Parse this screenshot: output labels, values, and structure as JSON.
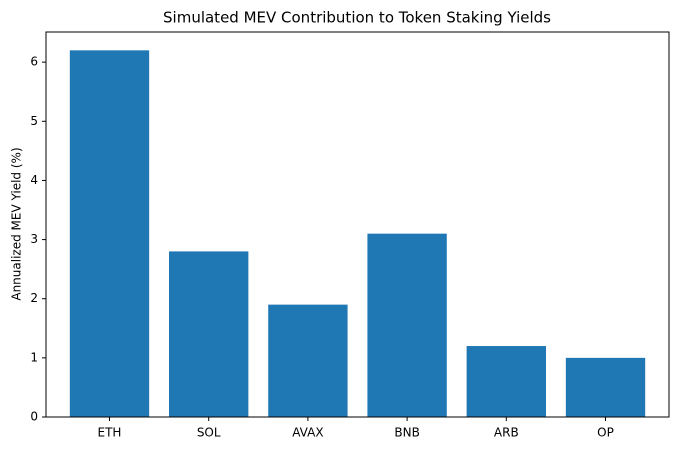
{
  "chart_data": {
    "type": "bar",
    "title": "Simulated MEV Contribution to Token Staking Yields",
    "y_label": "Annualized MEV Yield (%)",
    "categories": [
      "ETH",
      "SOL",
      "AVAX",
      "BNB",
      "ARB",
      "OP"
    ],
    "values": [
      6.2,
      2.8,
      1.9,
      3.1,
      1.2,
      1.0
    ],
    "color": "#1f77b4",
    "ylim": [
      0,
      6.51
    ],
    "yticks": [
      0,
      1,
      2,
      3,
      4,
      5,
      6
    ],
    "grid": false
  }
}
